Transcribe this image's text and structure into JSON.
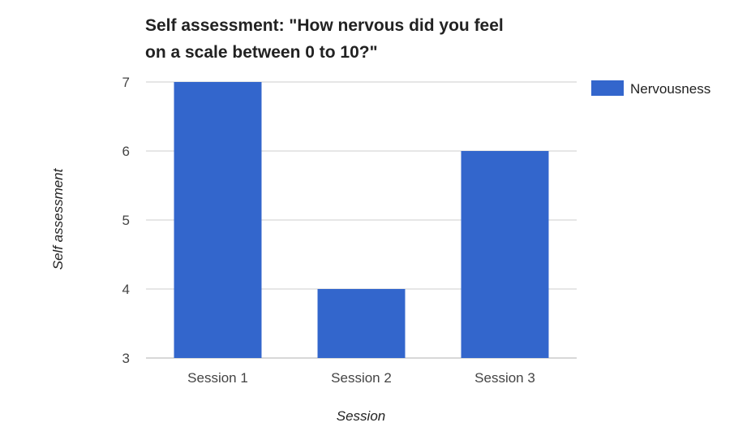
{
  "chart_data": {
    "type": "bar",
    "title_lines": [
      "Self assessment: \"How nervous did you feel",
      "on a scale between 0 to 10?\""
    ],
    "xlabel": "Session",
    "ylabel": "Self assessment",
    "categories": [
      "Session 1",
      "Session 2",
      "Session 3"
    ],
    "series": [
      {
        "name": "Nervousness",
        "values": [
          7,
          4,
          6
        ],
        "color": "#3366cc"
      }
    ],
    "ylim": [
      3,
      7
    ],
    "yticks": [
      3,
      4,
      5,
      6,
      7
    ],
    "grid": true,
    "legend_position": "right"
  }
}
